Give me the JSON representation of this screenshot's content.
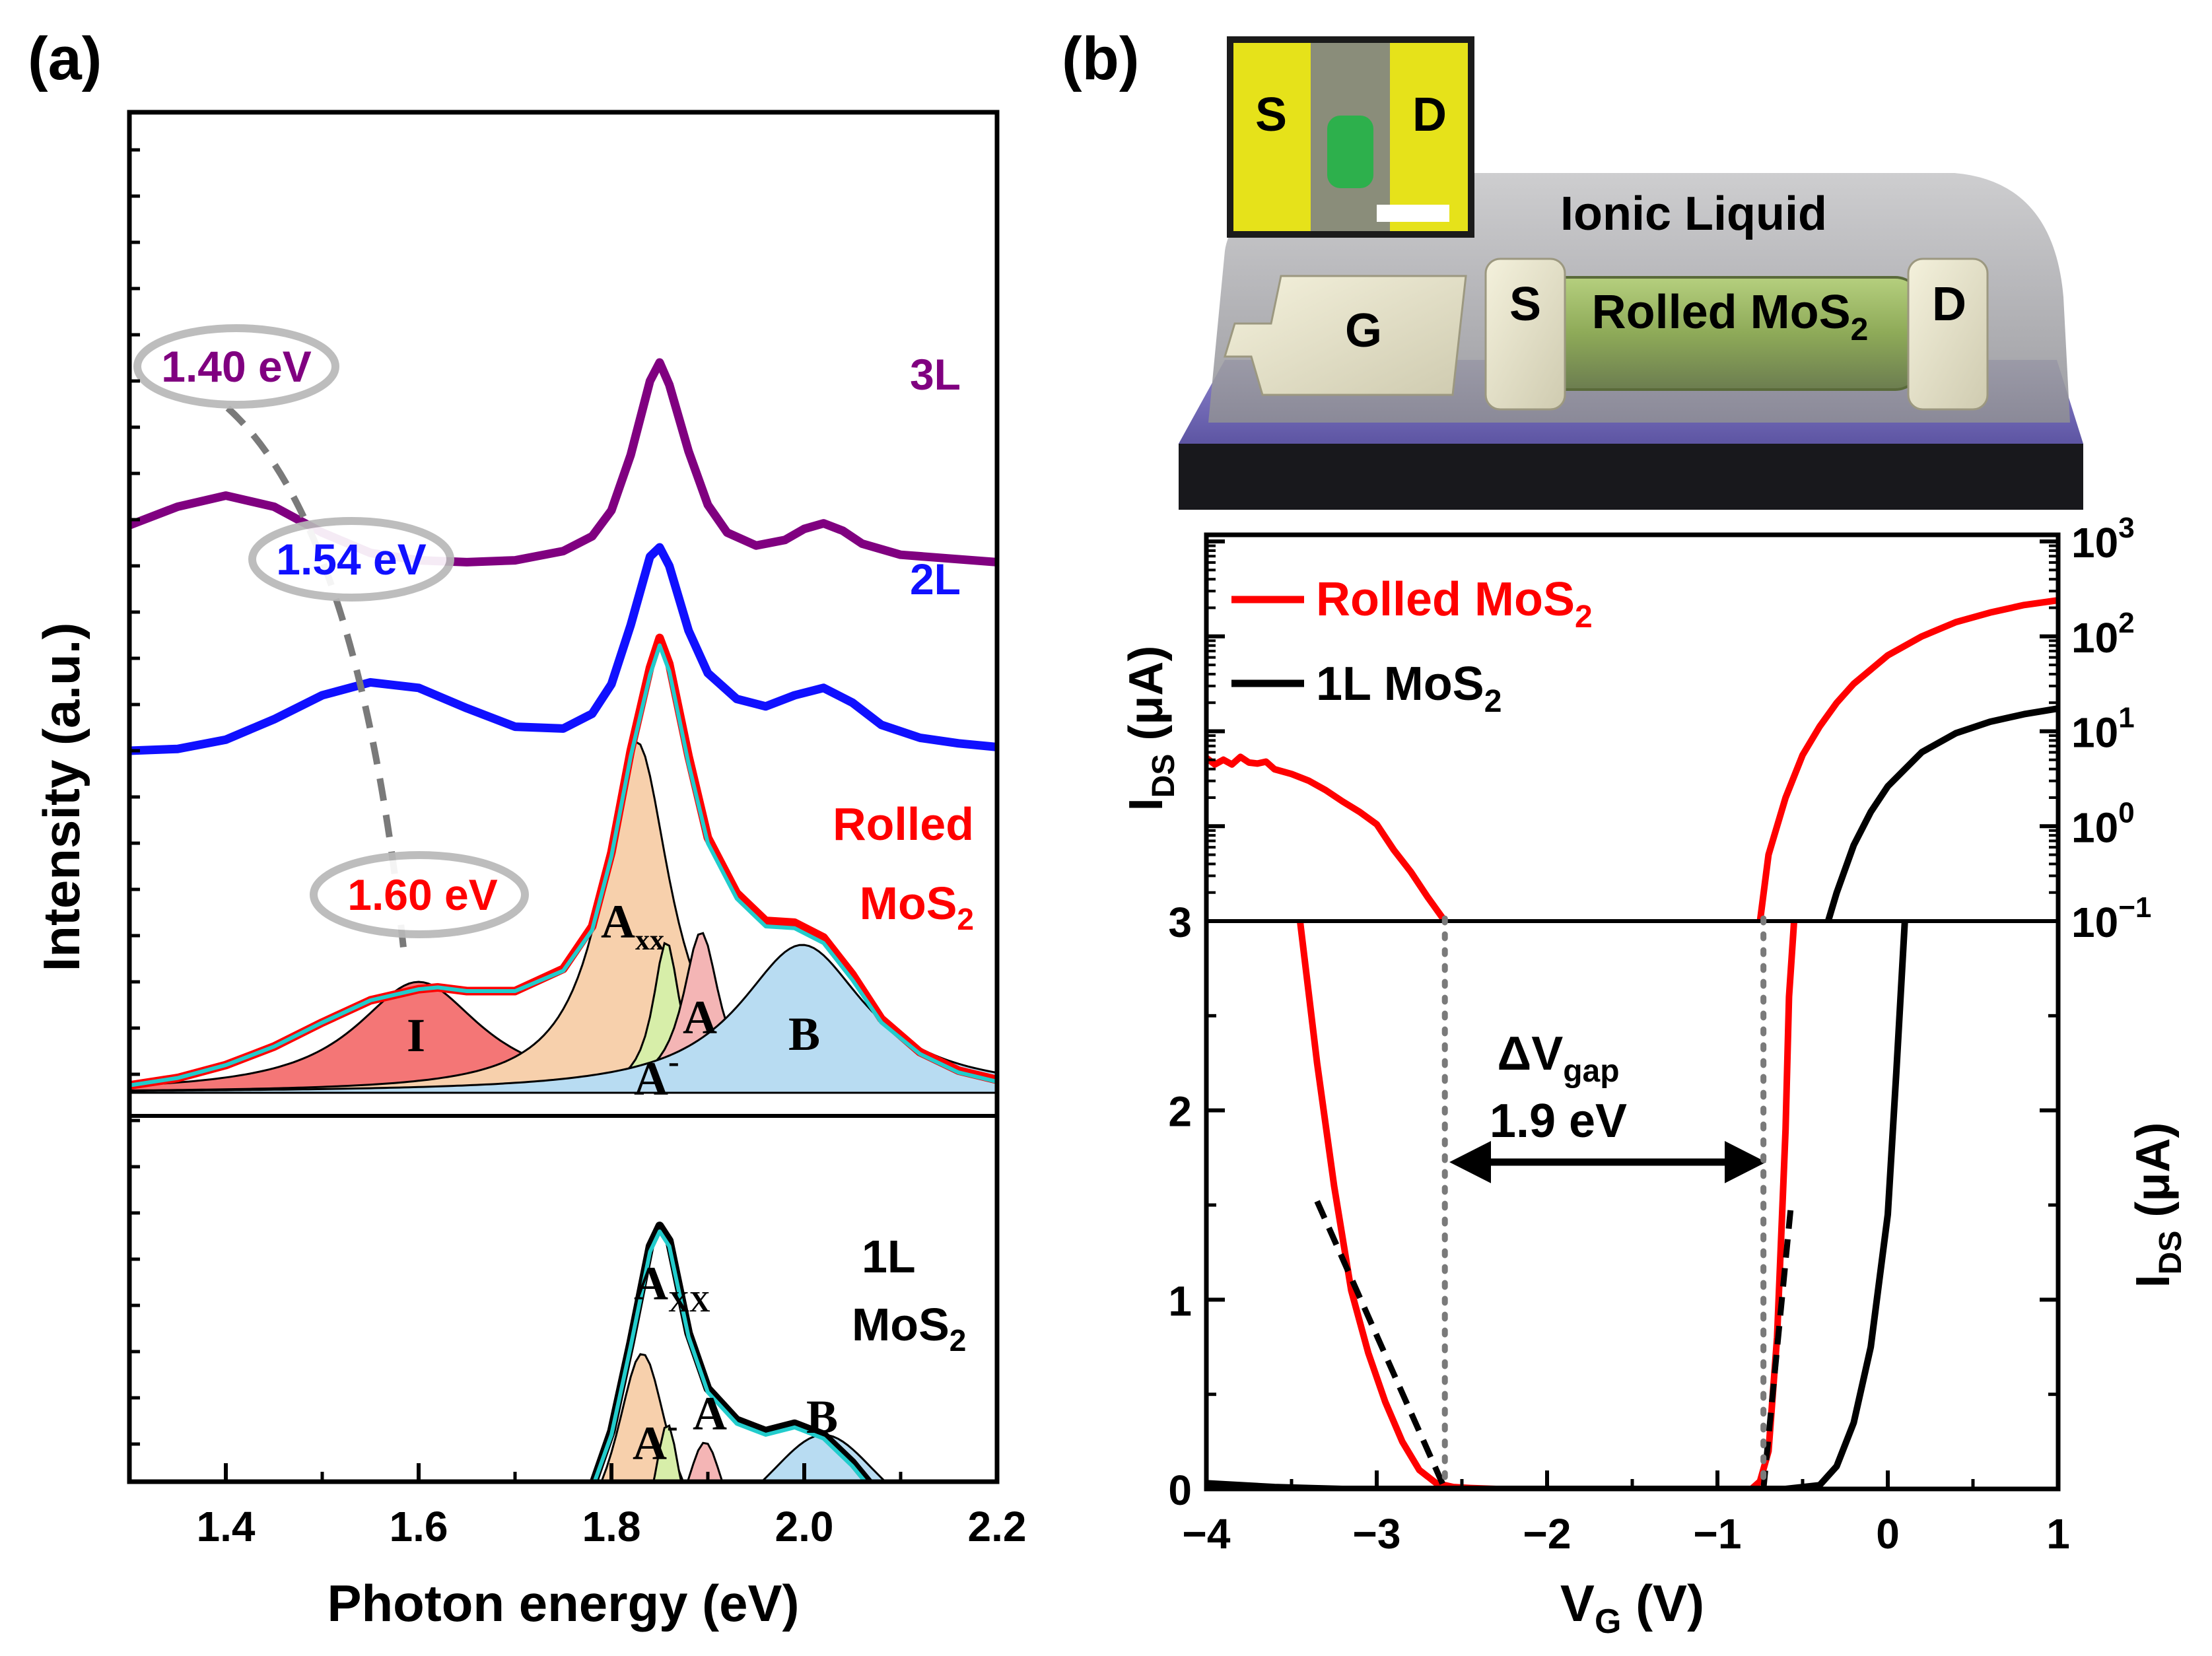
{
  "panel_a": {
    "label": "(a)",
    "chart_data": {
      "type": "line",
      "title": "",
      "xlabel": "Photon energy (eV)",
      "ylabel": "Intensity (a.u.)",
      "xlim": [
        1.3,
        2.2
      ],
      "xticks": [
        1.4,
        1.6,
        1.8,
        2.0,
        2.2
      ],
      "xtick_labels": [
        "1.4",
        "1.6",
        "1.8",
        "2.0",
        "2.2"
      ],
      "series": [
        {
          "name": "3L",
          "color": "#800080",
          "offset": 2.85,
          "x": [
            1.3,
            1.35,
            1.4,
            1.45,
            1.5,
            1.55,
            1.6,
            1.65,
            1.7,
            1.75,
            1.78,
            1.8,
            1.82,
            1.84,
            1.85,
            1.86,
            1.88,
            1.9,
            1.92,
            1.95,
            1.98,
            2.0,
            2.02,
            2.04,
            2.06,
            2.1,
            2.15,
            2.2
          ],
          "y": [
            0.22,
            0.32,
            0.38,
            0.32,
            0.18,
            0.07,
            0.03,
            0.02,
            0.03,
            0.08,
            0.16,
            0.3,
            0.6,
            1.0,
            1.1,
            0.98,
            0.62,
            0.33,
            0.18,
            0.11,
            0.14,
            0.2,
            0.23,
            0.19,
            0.12,
            0.06,
            0.04,
            0.02
          ]
        },
        {
          "name": "2L",
          "color": "#1010ff",
          "offset": 1.85,
          "x": [
            1.3,
            1.35,
            1.4,
            1.45,
            1.5,
            1.55,
            1.6,
            1.65,
            1.7,
            1.75,
            1.78,
            1.8,
            1.82,
            1.84,
            1.85,
            1.86,
            1.88,
            1.9,
            1.93,
            1.96,
            1.99,
            2.02,
            2.05,
            2.08,
            2.12,
            2.16,
            2.2
          ],
          "y": [
            0.0,
            0.01,
            0.06,
            0.17,
            0.3,
            0.37,
            0.34,
            0.23,
            0.13,
            0.12,
            0.2,
            0.36,
            0.68,
            1.05,
            1.1,
            1.0,
            0.65,
            0.42,
            0.28,
            0.24,
            0.3,
            0.34,
            0.26,
            0.14,
            0.07,
            0.04,
            0.02
          ]
        },
        {
          "name": "Rolled MoS2 (data)",
          "color": "#ff0000",
          "offset": 0.0,
          "x": [
            1.3,
            1.35,
            1.4,
            1.45,
            1.5,
            1.55,
            1.6,
            1.62,
            1.65,
            1.7,
            1.75,
            1.78,
            1.8,
            1.82,
            1.84,
            1.85,
            1.86,
            1.88,
            1.9,
            1.93,
            1.96,
            1.99,
            2.02,
            2.05,
            2.08,
            2.12,
            2.16,
            2.2
          ],
          "y": [
            0.04,
            0.08,
            0.15,
            0.25,
            0.38,
            0.5,
            0.56,
            0.57,
            0.55,
            0.55,
            0.67,
            0.9,
            1.3,
            1.85,
            2.3,
            2.46,
            2.32,
            1.82,
            1.38,
            1.08,
            0.93,
            0.92,
            0.84,
            0.64,
            0.4,
            0.22,
            0.12,
            0.07
          ]
        },
        {
          "name": "Rolled MoS2 (fit)",
          "color": "#22cccc",
          "offset": 0.0,
          "x": [
            1.3,
            1.35,
            1.4,
            1.45,
            1.5,
            1.55,
            1.6,
            1.62,
            1.65,
            1.7,
            1.75,
            1.78,
            1.8,
            1.82,
            1.84,
            1.85,
            1.86,
            1.88,
            1.9,
            1.93,
            1.96,
            1.99,
            2.02,
            2.05,
            2.08,
            2.12,
            2.16,
            2.2
          ],
          "y": [
            0.04,
            0.08,
            0.15,
            0.25,
            0.38,
            0.5,
            0.56,
            0.57,
            0.55,
            0.55,
            0.66,
            0.88,
            1.28,
            1.82,
            2.26,
            2.42,
            2.28,
            1.78,
            1.35,
            1.05,
            0.9,
            0.89,
            0.81,
            0.61,
            0.38,
            0.21,
            0.11,
            0.06
          ]
        },
        {
          "name": "1L MoS2 (data)",
          "color": "#000000",
          "offset": -2.55,
          "x": [
            1.3,
            1.4,
            1.5,
            1.6,
            1.65,
            1.7,
            1.73,
            1.76,
            1.78,
            1.8,
            1.82,
            1.84,
            1.85,
            1.86,
            1.88,
            1.9,
            1.93,
            1.96,
            1.99,
            2.02,
            2.05,
            2.08,
            2.12,
            2.16,
            2.2
          ],
          "y": [
            0.03,
            0.06,
            0.08,
            0.1,
            0.12,
            0.15,
            0.2,
            0.28,
            0.42,
            0.72,
            1.2,
            1.72,
            1.83,
            1.75,
            1.25,
            0.95,
            0.78,
            0.72,
            0.76,
            0.7,
            0.55,
            0.36,
            0.22,
            0.12,
            0.07
          ]
        },
        {
          "name": "1L MoS2 (fit)",
          "color": "#22cccc",
          "offset": -2.55,
          "x": [
            1.3,
            1.4,
            1.5,
            1.6,
            1.65,
            1.7,
            1.73,
            1.76,
            1.78,
            1.8,
            1.82,
            1.84,
            1.85,
            1.86,
            1.88,
            1.9,
            1.93,
            1.96,
            1.99,
            2.02,
            2.05,
            2.08,
            2.12,
            2.16,
            2.2
          ],
          "y": [
            0.03,
            0.06,
            0.08,
            0.1,
            0.12,
            0.15,
            0.2,
            0.28,
            0.41,
            0.7,
            1.18,
            1.69,
            1.8,
            1.72,
            1.23,
            0.93,
            0.76,
            0.7,
            0.74,
            0.68,
            0.53,
            0.34,
            0.21,
            0.11,
            0.06
          ]
        }
      ],
      "peaks_rolled": [
        {
          "name": "I",
          "center": 1.6,
          "height": 0.6,
          "width": 0.16,
          "color": "#f47676"
        },
        {
          "name": "Axx",
          "center": 1.826,
          "height": 1.9,
          "width": 0.085,
          "color": "#f7d0ac"
        },
        {
          "name": "A-",
          "center": 1.857,
          "height": 0.82,
          "width": 0.034,
          "color": "#d7eea9"
        },
        {
          "name": "A",
          "center": 1.893,
          "height": 0.87,
          "width": 0.046,
          "color": "#f4b5b5"
        },
        {
          "name": "B",
          "center": 1.998,
          "height": 0.8,
          "width": 0.16,
          "color": "#b8dcf2"
        }
      ],
      "peaks_1L": [
        {
          "name": "Axx",
          "center": 1.832,
          "height": 1.14,
          "width": 0.068,
          "color": "#f7d0ac"
        },
        {
          "name": "A-",
          "center": 1.858,
          "height": 0.76,
          "width": 0.034,
          "color": "#d7eea9"
        },
        {
          "name": "A",
          "center": 1.897,
          "height": 0.66,
          "width": 0.052,
          "color": "#f4b5b5"
        },
        {
          "name": "B",
          "center": 2.02,
          "height": 0.7,
          "width": 0.17,
          "color": "#b8dcf2"
        }
      ],
      "dashed_trend": {
        "x": [
          1.4,
          1.54,
          1.6
        ],
        "color": "#808080"
      },
      "annotations": {
        "ev_3L": "1.40 eV",
        "ev_2L": "1.54 eV",
        "ev_rolled": "1.60 eV",
        "label_3L": "3L",
        "label_2L": "2L",
        "label_rolled_1": "Rolled",
        "label_rolled_2_base": "MoS",
        "label_rolled_2_sub": "2",
        "label_1L_1": "1L",
        "label_1L_2_base": "MoS",
        "label_1L_2_sub": "2",
        "peak_I": "I",
        "peak_Axx_base": "A",
        "peak_Axx_sub": "xx",
        "peak_1L_Axx_base": "A",
        "peak_1L_Axx_sub": "XX",
        "peak_Aminus_base": "A",
        "peak_Aminus_sup": "-",
        "peak_A": "A",
        "peak_B": "B"
      }
    }
  },
  "panel_b": {
    "label": "(b)",
    "device": {
      "ionic_liquid": "Ionic Liquid",
      "gate": "G",
      "source": "S",
      "drain": "D",
      "channel_base": "Rolled MoS",
      "channel_sub": "2",
      "inset_source": "S",
      "inset_drain": "D"
    },
    "chart_data": [
      {
        "type": "line",
        "scale": "log",
        "ylabel_base": "I",
        "ylabel_sub": "DS",
        "ylabel_unit": " (μA)",
        "xlim": [
          -4,
          1
        ],
        "ylim_log10": [
          -1,
          3
        ],
        "ytick_labels": [
          {
            "base": "10",
            "exp": "3"
          },
          {
            "base": "10",
            "exp": "2"
          },
          {
            "base": "10",
            "exp": "1"
          },
          {
            "base": "10",
            "exp": "0"
          },
          {
            "base": "10",
            "exp": "−1"
          }
        ],
        "legend": [
          {
            "name_base": "Rolled MoS",
            "name_sub": "2",
            "color": "#ff0000"
          },
          {
            "name_base": "1L MoS",
            "name_sub": "2",
            "color": "#000000"
          }
        ],
        "series": [
          {
            "name": "Rolled MoS2 (negative branch)",
            "color": "#ff0000",
            "x": [
              -4.0,
              -3.95,
              -3.9,
              -3.85,
              -3.8,
              -3.75,
              -3.7,
              -3.65,
              -3.6,
              -3.5,
              -3.4,
              -3.3,
              -3.2,
              -3.1,
              -3.0,
              -2.9,
              -2.8,
              -2.7,
              -2.6
            ],
            "log10y": [
              0.72,
              0.65,
              0.7,
              0.65,
              0.73,
              0.67,
              0.66,
              0.68,
              0.6,
              0.55,
              0.48,
              0.38,
              0.26,
              0.15,
              0.02,
              -0.25,
              -0.48,
              -0.75,
              -1.0
            ]
          },
          {
            "name": "Rolled MoS2 (positive branch)",
            "color": "#ff0000",
            "x": [
              -0.75,
              -0.7,
              -0.6,
              -0.5,
              -0.4,
              -0.3,
              -0.2,
              -0.1,
              0.0,
              0.2,
              0.4,
              0.6,
              0.8,
              1.0
            ],
            "log10y": [
              -1.0,
              -0.3,
              0.3,
              0.75,
              1.05,
              1.3,
              1.5,
              1.65,
              1.8,
              2.0,
              2.15,
              2.25,
              2.33,
              2.38
            ]
          },
          {
            "name": "1L MoS2",
            "color": "#000000",
            "x": [
              -0.35,
              -0.3,
              -0.2,
              -0.1,
              0.0,
              0.2,
              0.4,
              0.6,
              0.8,
              1.0
            ],
            "log10y": [
              -1.0,
              -0.7,
              -0.2,
              0.15,
              0.42,
              0.78,
              0.98,
              1.1,
              1.18,
              1.24
            ]
          }
        ]
      },
      {
        "type": "line",
        "scale": "linear",
        "xlabel_base": "V",
        "xlabel_sub": "G",
        "xlabel_unit": " (V)",
        "ylabel_base": "I",
        "ylabel_sub": "DS",
        "ylabel_unit": " (μA)",
        "xlim": [
          -4,
          1
        ],
        "ylim": [
          0,
          3
        ],
        "xticks": [
          -4,
          -3,
          -2,
          -1,
          0,
          1
        ],
        "xtick_labels": [
          "−4",
          "−3",
          "−2",
          "−1",
          "0",
          "1"
        ],
        "yticks": [
          0,
          1,
          2,
          3
        ],
        "ytick_labels": [
          "0",
          "1",
          "2",
          "3"
        ],
        "series": [
          {
            "name": "Rolled MoS2 (negative branch)",
            "color": "#ff0000",
            "x": [
              -3.45,
              -3.35,
              -3.25,
              -3.15,
              -3.05,
              -2.95,
              -2.85,
              -2.75,
              -2.65,
              -2.55,
              -2.45,
              -2.3,
              -2.0
            ],
            "y": [
              3.0,
              2.25,
              1.6,
              1.05,
              0.72,
              0.46,
              0.25,
              0.1,
              0.03,
              0.01,
              0.005,
              0.0,
              0.0
            ]
          },
          {
            "name": "Rolled MoS2 (flat)",
            "color": "#ff0000",
            "x": [
              -2.0,
              -1.5,
              -1.0,
              -0.8
            ],
            "y": [
              0.0,
              0.0,
              0.0,
              0.0
            ]
          },
          {
            "name": "Rolled MoS2 (positive branch)",
            "color": "#ff0000",
            "x": [
              -0.8,
              -0.75,
              -0.7,
              -0.65,
              -0.6,
              -0.58,
              -0.55
            ],
            "y": [
              0.0,
              0.04,
              0.2,
              0.8,
              1.9,
              2.6,
              3.0
            ]
          },
          {
            "name": "1L MoS2",
            "color": "#000000",
            "x": [
              -4.0,
              -3.8,
              -3.6,
              -3.4,
              -3.2,
              -3.0,
              -2.5,
              -1.5,
              -0.6,
              -0.4,
              -0.3,
              -0.2,
              -0.1,
              0.0,
              0.05,
              0.1
            ],
            "y": [
              0.03,
              0.02,
              0.01,
              0.005,
              0.0,
              0.0,
              0.0,
              0.0,
              0.0,
              0.02,
              0.12,
              0.35,
              0.75,
              1.45,
              2.2,
              3.0
            ]
          }
        ],
        "tangents": [
          {
            "x": [
              -3.35,
              -2.6
            ],
            "y": [
              1.52,
              0.0
            ],
            "color": "#000000"
          },
          {
            "x": [
              -0.73,
              -0.57
            ],
            "y": [
              0.0,
              1.48
            ],
            "color": "#000000"
          }
        ],
        "gap_lines_x": [
          -2.6,
          -0.73
        ],
        "gap_label_base": "ΔV",
        "gap_label_sub": "gap",
        "gap_value": "1.9 eV"
      }
    ]
  }
}
